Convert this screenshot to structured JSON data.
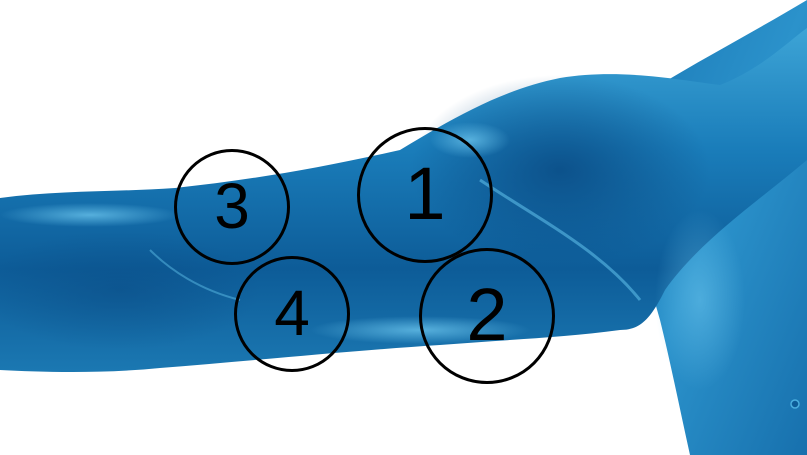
{
  "image": {
    "subject": "anatomical-arm-and-shoulder",
    "colors": {
      "background": "#ffffff",
      "skin_dark": "#0a4f86",
      "skin_mid": "#1677b3",
      "skin_light": "#3ea7d8",
      "marker_stroke": "#000000"
    }
  },
  "markers": [
    {
      "label": "1"
    },
    {
      "label": "2"
    },
    {
      "label": "3"
    },
    {
      "label": "4"
    }
  ]
}
